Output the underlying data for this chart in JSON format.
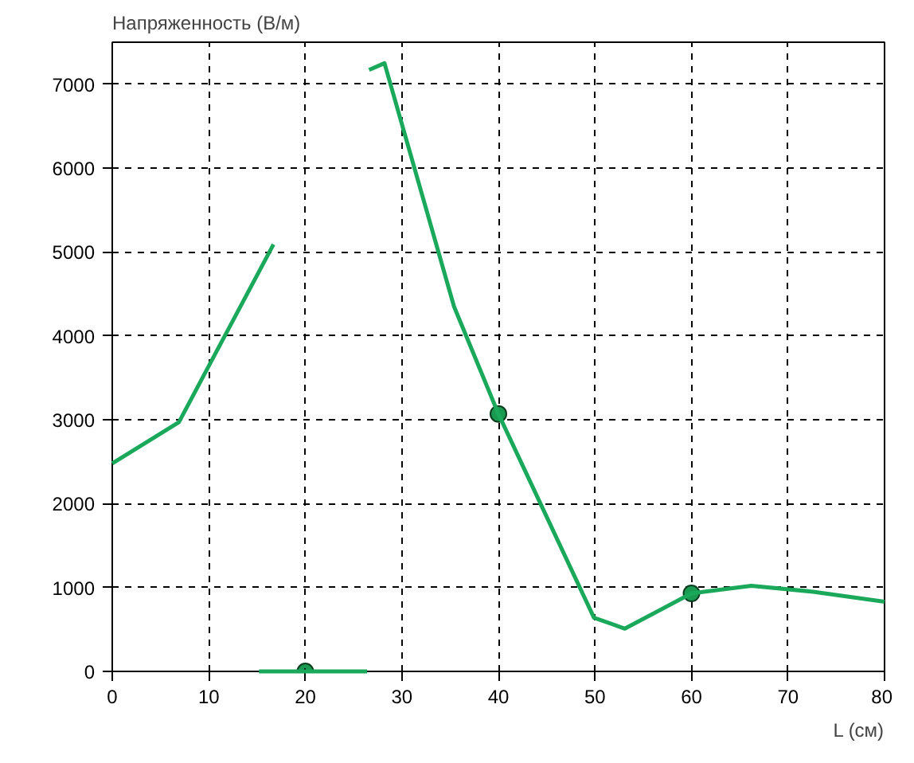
{
  "chart_data": {
    "type": "line",
    "ylabel": "Напряженность (В/м)",
    "xlabel": "L (см)",
    "xlim": [
      0,
      80
    ],
    "xticks": [
      0,
      10,
      20,
      30,
      40,
      50,
      60,
      70,
      80
    ],
    "ylim": [
      0,
      7500
    ],
    "yticks": [
      0,
      1000,
      2000,
      3000,
      4000,
      5000,
      6000,
      7000
    ],
    "grid": true,
    "series": [
      {
        "color": "#1aa85a",
        "line_style": "solid",
        "x": [
          0,
          6.9,
          16.7
        ],
        "values": [
          2480,
          2970,
          5090
        ]
      },
      {
        "color": "#1aa85a",
        "line_style": "solid",
        "x": [
          15.2,
          26.4
        ],
        "values": [
          0,
          0
        ]
      },
      {
        "color": "#1aa85a",
        "line_style": "solid",
        "x": [
          26.6,
          28.2,
          35.4,
          40,
          49.9,
          53.1,
          60,
          66.2,
          72.6,
          80
        ],
        "values": [
          7170,
          7250,
          4350,
          3070,
          640,
          510,
          930,
          1020,
          950,
          830
        ]
      },
      {
        "type": "scatter",
        "color": "#1a9a50",
        "marker": "circle",
        "x": [
          20,
          40,
          60
        ],
        "values": [
          0,
          3070,
          930
        ]
      }
    ]
  }
}
